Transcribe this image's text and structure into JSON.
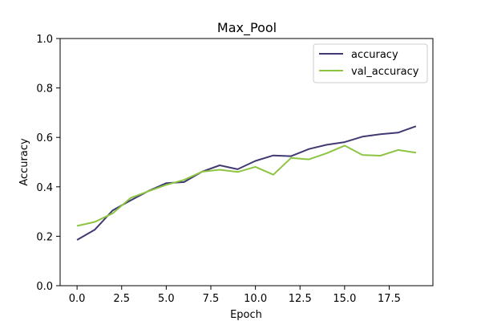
{
  "chart_data": {
    "type": "line",
    "title": "Max_Pool",
    "xlabel": "Epoch",
    "ylabel": "Accuracy",
    "xlim": [
      -0.95,
      19.95
    ],
    "ylim": [
      0.0,
      1.0
    ],
    "xticks": [
      0.0,
      2.5,
      5.0,
      7.5,
      10.0,
      12.5,
      15.0,
      17.5
    ],
    "xtick_labels": [
      "0.0",
      "2.5",
      "5.0",
      "7.5",
      "10.0",
      "12.5",
      "15.0",
      "17.5"
    ],
    "yticks": [
      0.0,
      0.2,
      0.4,
      0.6,
      0.8,
      1.0
    ],
    "ytick_labels": [
      "0.0",
      "0.2",
      "0.4",
      "0.6",
      "0.8",
      "1.0"
    ],
    "grid": false,
    "legend_position": "top-right",
    "x": [
      0,
      1,
      2,
      3,
      4,
      5,
      6,
      7,
      8,
      9,
      10,
      11,
      12,
      13,
      14,
      15,
      16,
      17,
      18,
      19
    ],
    "series": [
      {
        "name": "accuracy",
        "color": "#413a72",
        "values": [
          0.185,
          0.227,
          0.305,
          0.345,
          0.383,
          0.415,
          0.419,
          0.461,
          0.487,
          0.471,
          0.505,
          0.527,
          0.524,
          0.553,
          0.57,
          0.581,
          0.603,
          0.613,
          0.619,
          0.645
        ]
      },
      {
        "name": "val_accuracy",
        "color": "#8cc542",
        "values": [
          0.242,
          0.258,
          0.293,
          0.355,
          0.382,
          0.408,
          0.428,
          0.461,
          0.469,
          0.46,
          0.481,
          0.449,
          0.517,
          0.511,
          0.536,
          0.567,
          0.529,
          0.526,
          0.549,
          0.538
        ]
      }
    ]
  }
}
